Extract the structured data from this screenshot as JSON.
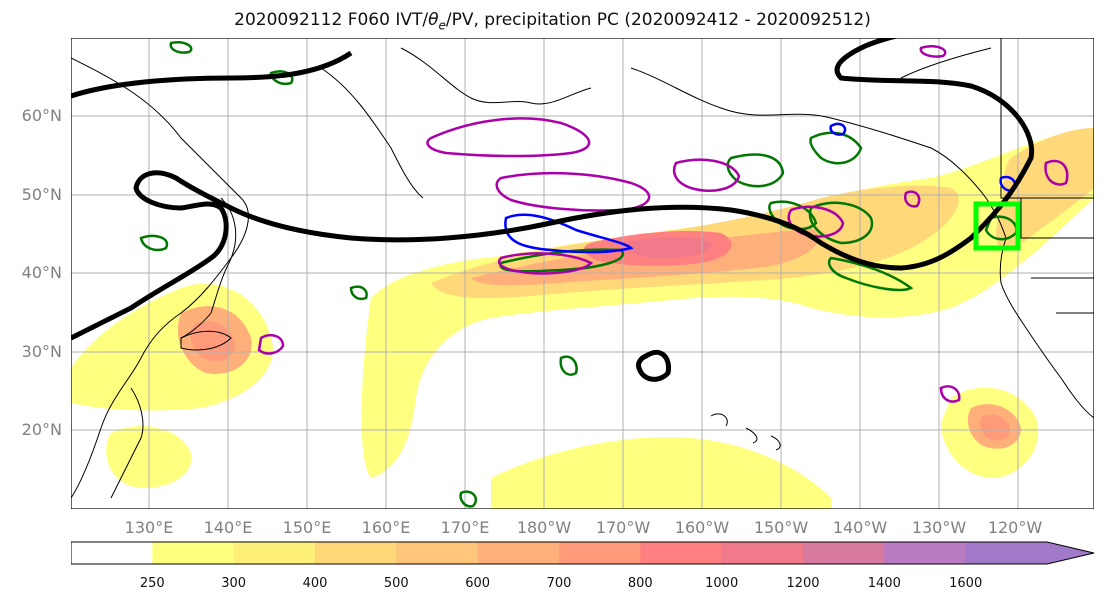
{
  "title": {
    "prefix": "2020092112 F060 IVT/",
    "theta": "θ",
    "theta_sub": "e",
    "suffix": "/PV, precipitation PC (2020092412 - 2020092512)"
  },
  "lat_labels": [
    "60°N",
    "50°N",
    "40°N",
    "30°N",
    "20°N"
  ],
  "lon_labels": [
    "130°E",
    "140°E",
    "150°E",
    "160°E",
    "170°E",
    "180°W",
    "170°W",
    "160°W",
    "150°W",
    "140°W",
    "130°W",
    "120°W"
  ],
  "colorbar": {
    "levels": [
      "250",
      "300",
      "400",
      "500",
      "600",
      "700",
      "800",
      "1000",
      "1200",
      "1400",
      "1600"
    ],
    "colors": [
      "#ffffff",
      "#ffff80",
      "#fff07a",
      "#ffd87a",
      "#ffc57a",
      "#ffb07a",
      "#ff9a7a",
      "#ff8080",
      "#f07a8a",
      "#d87aa0",
      "#b87ac0",
      "#a07ac8"
    ]
  },
  "legend_colors": {
    "pv": "#000000",
    "ivt_high": "#aa00aa",
    "theta_green": "#007700",
    "theta_blue": "#0000ff",
    "target_box": "#00ff00"
  }
}
